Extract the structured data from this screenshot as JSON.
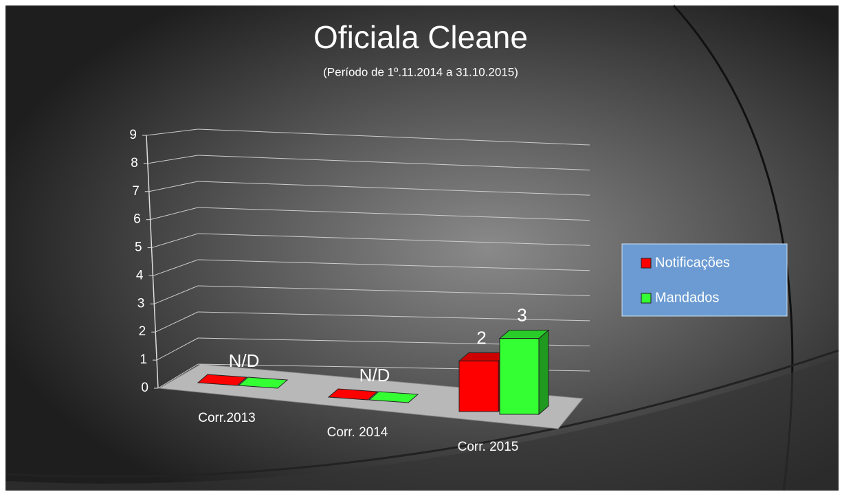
{
  "chart_data": {
    "type": "bar3d",
    "title": "Oficiala Cleane",
    "subtitle": "(Período de 1º.11.2014  a  31.10.2015)",
    "categories": [
      "Corr.2013",
      "Corr. 2014",
      "Corr. 2015"
    ],
    "series": [
      {
        "name": "Notificações",
        "color": "#ff0000",
        "values": [
          null,
          null,
          2
        ]
      },
      {
        "name": "Mandados",
        "color": "#33ff33",
        "values": [
          null,
          null,
          3
        ]
      }
    ],
    "annotations": [
      "N/D",
      "N/D"
    ],
    "ylim": [
      0,
      9
    ],
    "yticks": [
      0,
      1,
      2,
      3,
      4,
      5,
      6,
      7,
      8,
      9
    ],
    "grid": true,
    "legend": "right"
  }
}
